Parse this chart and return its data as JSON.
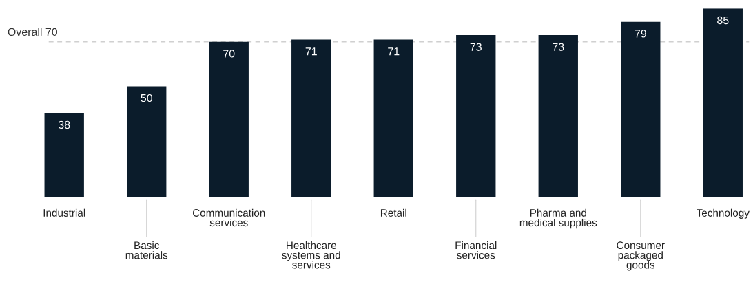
{
  "chart_data": {
    "type": "bar",
    "categories": [
      "Industrial",
      "Basic\nmaterials",
      "Communication\nservices",
      "Healthcare\nsystems and\nservices",
      "Retail",
      "Financial\nservices",
      "Pharma and\nmedical supplies",
      "Consumer\npackaged\ngoods",
      "Technology"
    ],
    "values": [
      38,
      50,
      70,
      71,
      71,
      73,
      73,
      79,
      85
    ],
    "color": "#0b1c2b",
    "data_labels": true,
    "ref_lines": [
      {
        "axis": "y",
        "value": 70,
        "label": "Overall 70",
        "color": "#d0d0d0",
        "line_style": "dashed"
      }
    ]
  }
}
